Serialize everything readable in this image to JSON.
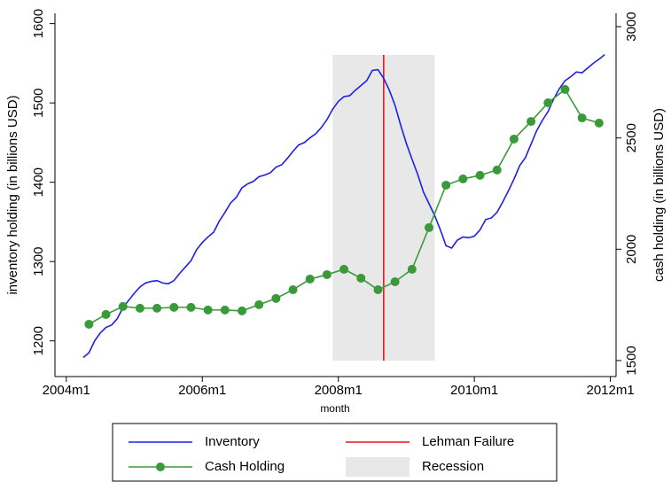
{
  "chart_data": {
    "type": "line",
    "xlabel": "month",
    "ylabel": "inventory holding (in billions USD)",
    "y2label": "cash holding (in billions USD)",
    "xlim": [
      "2003m11",
      "2012m2"
    ],
    "xticks": [
      "2004m1",
      "2006m1",
      "2008m1",
      "2010m1",
      "2012m1"
    ],
    "ylim": [
      1155,
      1613
    ],
    "yticks": [
      1200,
      1300,
      1400,
      1500,
      1600
    ],
    "y2lim": [
      1428,
      3060
    ],
    "y2ticks": [
      1500,
      2000,
      2500,
      3000
    ],
    "grid": false,
    "legend": "bottom",
    "series": [
      {
        "name": "Inventory",
        "color": "#1f1fe6",
        "marker": false,
        "x": [
          "2004m4",
          "2004m5",
          "2004m6",
          "2004m7",
          "2004m8",
          "2004m9",
          "2004m10",
          "2004m11",
          "2004m12",
          "2005m1",
          "2005m2",
          "2005m3",
          "2005m4",
          "2005m5",
          "2005m6",
          "2005m7",
          "2005m8",
          "2005m9",
          "2005m10",
          "2005m11",
          "2005m12",
          "2006m1",
          "2006m2",
          "2006m3",
          "2006m4",
          "2006m5",
          "2006m6",
          "2006m7",
          "2006m8",
          "2006m9",
          "2006m10",
          "2006m11",
          "2006m12",
          "2007m1",
          "2007m2",
          "2007m3",
          "2007m4",
          "2007m5",
          "2007m6",
          "2007m7",
          "2007m8",
          "2007m9",
          "2007m10",
          "2007m11",
          "2007m12",
          "2008m1",
          "2008m2",
          "2008m3",
          "2008m4",
          "2008m5",
          "2008m6",
          "2008m7",
          "2008m8",
          "2008m9",
          "2008m10",
          "2008m11",
          "2008m12",
          "2009m1",
          "2009m2",
          "2009m3",
          "2009m4",
          "2009m5",
          "2009m6",
          "2009m7",
          "2009m8",
          "2009m9",
          "2009m10",
          "2009m11",
          "2009m12",
          "2010m1",
          "2010m2",
          "2010m3",
          "2010m4",
          "2010m5",
          "2010m6",
          "2010m7",
          "2010m8",
          "2010m9",
          "2010m10",
          "2010m11",
          "2010m12",
          "2011m1",
          "2011m2",
          "2011m3",
          "2011m4",
          "2011m5",
          "2011m6",
          "2011m7",
          "2011m8",
          "2011m9",
          "2011m10",
          "2011m11",
          "2011m12"
        ],
        "values": [
          1179,
          1185,
          1200,
          1210,
          1217,
          1220,
          1228,
          1242,
          1251,
          1260,
          1268,
          1273,
          1275,
          1276,
          1273,
          1272,
          1276,
          1285,
          1293,
          1301,
          1315,
          1324,
          1331,
          1337,
          1351,
          1362,
          1374,
          1381,
          1393,
          1398,
          1401,
          1407,
          1409,
          1412,
          1419,
          1422,
          1430,
          1439,
          1447,
          1450,
          1456,
          1461,
          1469,
          1479,
          1492,
          1502,
          1508,
          1509,
          1516,
          1522,
          1528,
          1541,
          1542,
          1531,
          1516,
          1497,
          1472,
          1449,
          1429,
          1410,
          1388,
          1373,
          1358,
          1340,
          1320,
          1317,
          1327,
          1331,
          1330,
          1332,
          1340,
          1353,
          1355,
          1362,
          1375,
          1389,
          1404,
          1421,
          1431,
          1448,
          1465,
          1478,
          1489,
          1505,
          1518,
          1528,
          1533,
          1539,
          1538,
          1544,
          1550,
          1555,
          1561
        ]
      },
      {
        "name": "Cash Holding",
        "color": "#3a9a3a",
        "marker": true,
        "axis": "y2",
        "x": [
          "2004m5",
          "2004m8",
          "2004m11",
          "2005m2",
          "2005m5",
          "2005m8",
          "2005m11",
          "2006m2",
          "2006m5",
          "2006m8",
          "2006m11",
          "2007m2",
          "2007m5",
          "2007m8",
          "2007m11",
          "2008m2",
          "2008m5",
          "2008m8",
          "2008m11",
          "2009m2",
          "2009m5",
          "2009m8",
          "2009m11",
          "2010m2",
          "2010m5",
          "2010m8",
          "2010m11",
          "2011m2",
          "2011m5",
          "2011m8",
          "2011m11"
        ],
        "values": [
          1663,
          1707,
          1743,
          1735,
          1735,
          1739,
          1739,
          1727,
          1727,
          1723,
          1751,
          1779,
          1818,
          1866,
          1886,
          1910,
          1870,
          1818,
          1854,
          1910,
          2097,
          2288,
          2316,
          2332,
          2356,
          2495,
          2574,
          2658,
          2718,
          2590,
          2567
        ]
      }
    ],
    "shaded_regions": [
      {
        "name": "Recession",
        "start": "2007m12",
        "end": "2009m6",
        "color": "#e8e8e8"
      }
    ],
    "vlines": [
      {
        "name": "Lehman Failure",
        "x": "2008m9",
        "color": "#e8141a"
      }
    ]
  }
}
